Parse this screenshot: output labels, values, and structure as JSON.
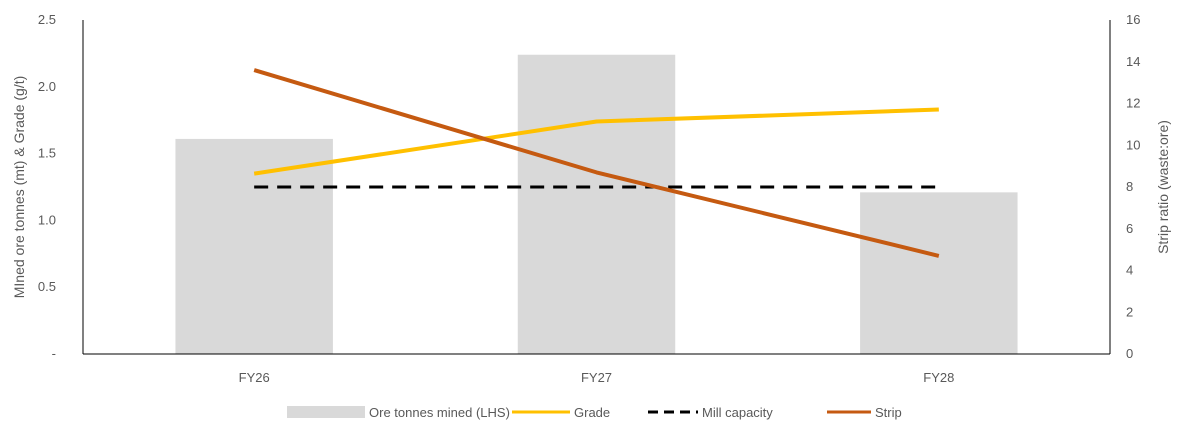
{
  "chart_data": {
    "type": "bar",
    "categories": [
      "FY26",
      "FY27",
      "FY28"
    ],
    "title": "",
    "xlabel": "",
    "ylabel": "MIned ore tonnes (mt) & Grade (g/t)",
    "y2label": "Strip ratio (waste:ore)",
    "ylim": [
      0,
      2.5
    ],
    "y2lim": [
      0,
      16
    ],
    "yticks": [
      {
        "value": 0,
        "label": "-"
      },
      {
        "value": 0.5,
        "label": "0.5"
      },
      {
        "value": 1.0,
        "label": "1.0"
      },
      {
        "value": 1.5,
        "label": "1.5"
      },
      {
        "value": 2.0,
        "label": "2.0"
      },
      {
        "value": 2.5,
        "label": "2.5"
      }
    ],
    "y2ticks": [
      {
        "value": 0,
        "label": "0"
      },
      {
        "value": 2,
        "label": "2"
      },
      {
        "value": 4,
        "label": "4"
      },
      {
        "value": 6,
        "label": "6"
      },
      {
        "value": 8,
        "label": "8"
      },
      {
        "value": 10,
        "label": "10"
      },
      {
        "value": 12,
        "label": "12"
      },
      {
        "value": 14,
        "label": "14"
      },
      {
        "value": 16,
        "label": "16"
      }
    ],
    "grid": false,
    "legend_position": "bottom",
    "series": [
      {
        "name": "Ore tonnes mined (LHS)",
        "type": "bar",
        "axis": "left",
        "color": "#d9d9d9",
        "values": [
          1.61,
          2.24,
          1.21
        ]
      },
      {
        "name": "Grade",
        "type": "line",
        "axis": "left",
        "color": "#ffc000",
        "dash": "solid",
        "values": [
          1.35,
          1.74,
          1.83
        ]
      },
      {
        "name": "Mill capacity",
        "type": "line",
        "axis": "left",
        "color": "#000000",
        "dash": "dashed",
        "values": [
          1.25,
          1.25,
          1.25
        ]
      },
      {
        "name": "Strip",
        "type": "line",
        "axis": "right",
        "color": "#c55a11",
        "dash": "solid",
        "values": [
          13.6,
          8.7,
          4.7
        ]
      }
    ]
  }
}
